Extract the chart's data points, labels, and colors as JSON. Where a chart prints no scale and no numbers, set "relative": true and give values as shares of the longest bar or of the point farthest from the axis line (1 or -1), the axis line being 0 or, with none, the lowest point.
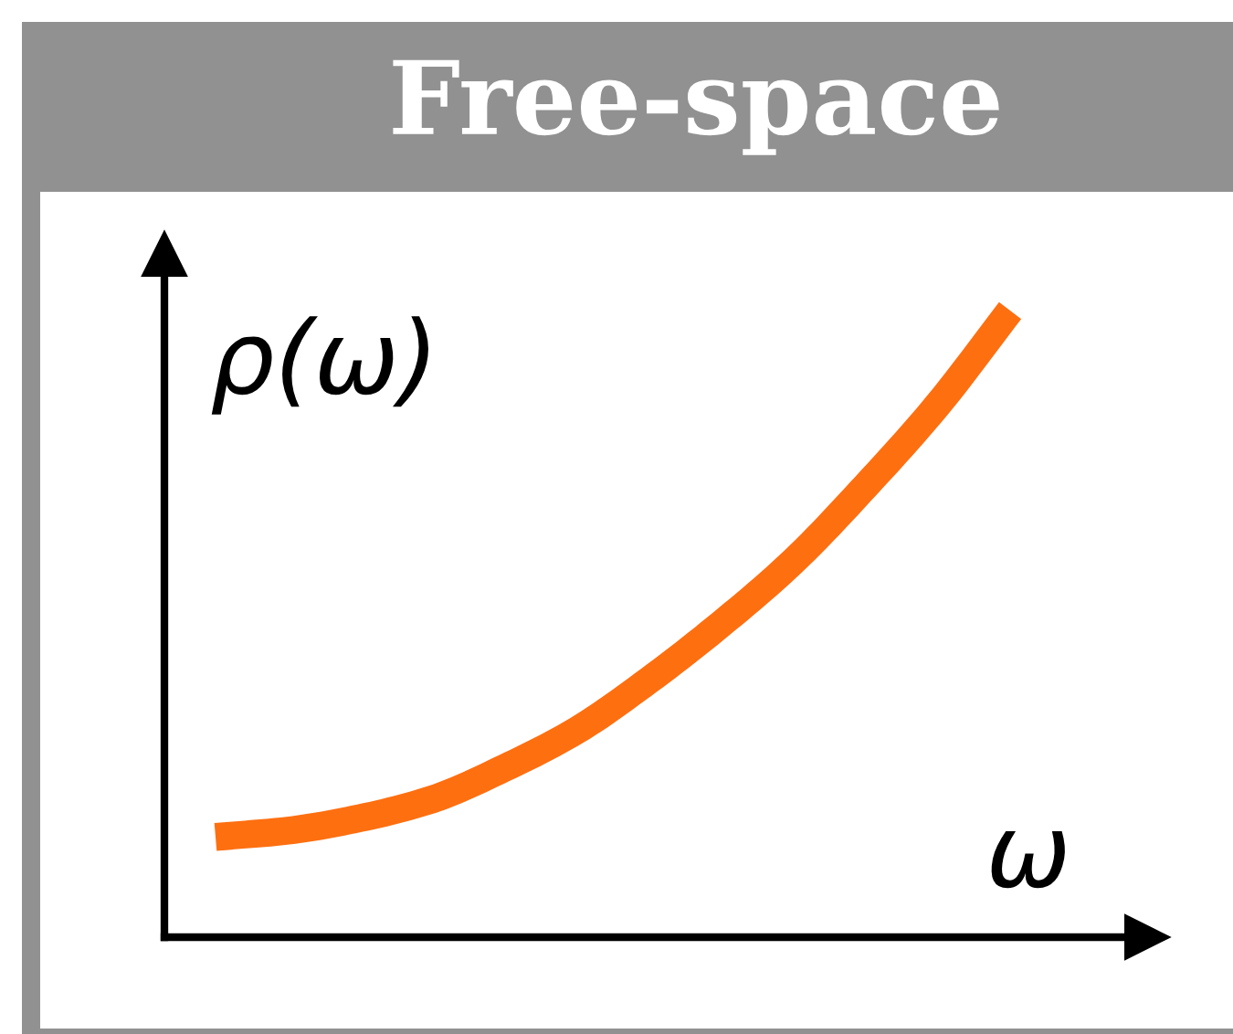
{
  "chart_data": {
    "type": "line",
    "title": "Free-space",
    "xlabel": "ω",
    "ylabel": "ρ(ω)",
    "relative": true,
    "categories": [
      null,
      null,
      null,
      null,
      null,
      null,
      null,
      null,
      null,
      null,
      null,
      null
    ],
    "series": [
      {
        "color": "#fe6f10",
        "values": [
          0.16,
          0.17,
          0.19,
          0.22,
          0.27,
          0.33,
          0.41,
          0.5,
          0.6,
          0.72,
          0.85,
          1.0
        ]
      }
    ],
    "line_style": "solid"
  }
}
